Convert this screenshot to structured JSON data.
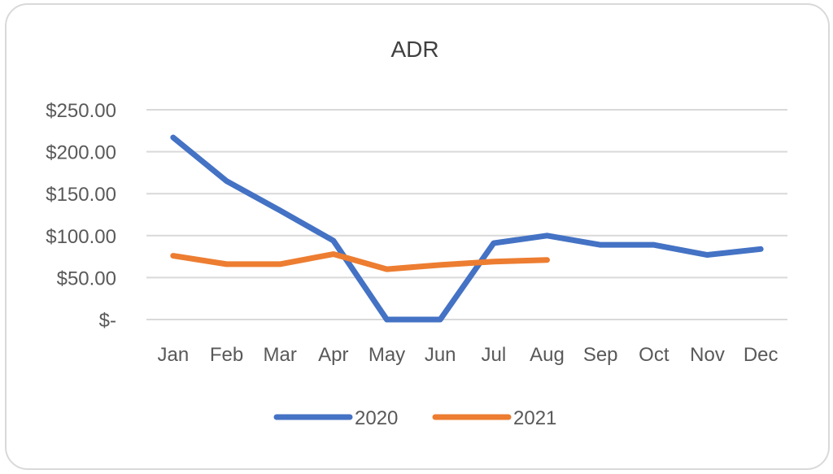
{
  "chart_data": {
    "type": "line",
    "title": "ADR",
    "categories": [
      "Jan",
      "Feb",
      "Mar",
      "Apr",
      "May",
      "Jun",
      "Jul",
      "Aug",
      "Sep",
      "Oct",
      "Nov",
      "Dec"
    ],
    "ylim": [
      0,
      250
    ],
    "yticks": [
      0,
      50,
      100,
      150,
      200,
      250
    ],
    "ytick_labels": [
      "$-",
      "$50.00",
      "$100.00",
      "$150.00",
      "$200.00",
      "$250.00"
    ],
    "grid": true,
    "legend": "bottom",
    "series": [
      {
        "name": "2020",
        "color": "#4472c4",
        "values": [
          217,
          165,
          130,
          94,
          0,
          0,
          91,
          100,
          89,
          89,
          77,
          84
        ]
      },
      {
        "name": "2021",
        "color": "#ed7d31",
        "values": [
          76,
          66,
          66,
          78,
          60,
          65,
          69,
          71,
          null,
          null,
          null,
          null
        ]
      }
    ]
  }
}
